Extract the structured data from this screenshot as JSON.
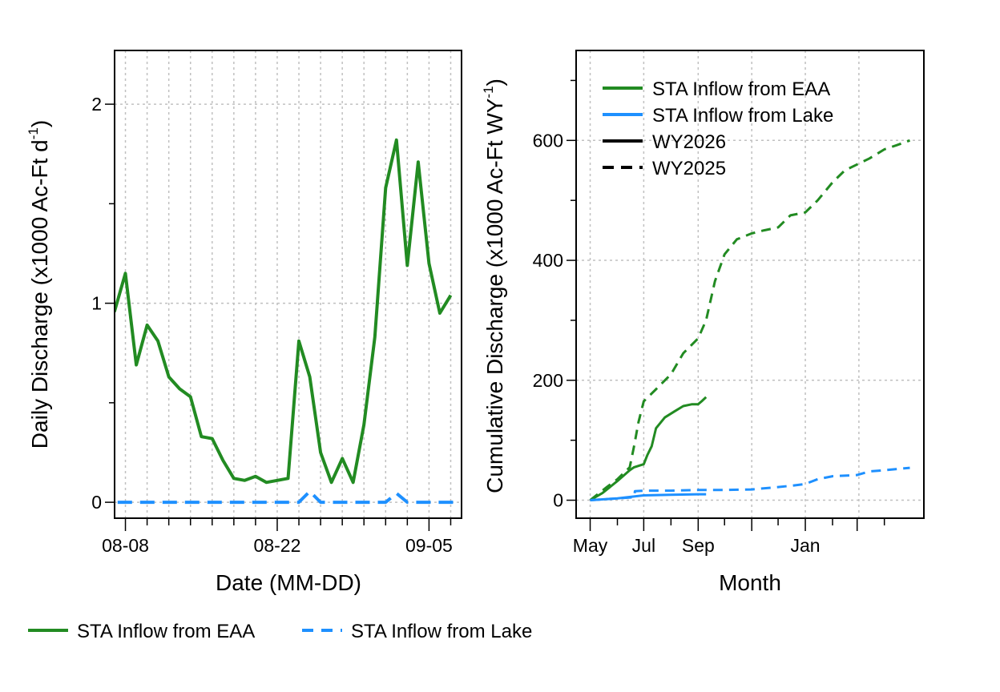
{
  "colors": {
    "eaa": "#228B22",
    "lake": "#1E90FF",
    "grid": "#C0C0C0",
    "axis": "#000000"
  },
  "chart_data": [
    {
      "type": "line",
      "xlabel": "Date (MM-DD)",
      "ylabel_main": "Daily Discharge (x1000 Ac-Ft d",
      "ylabel_sup": "-1",
      "ylabel_end": ")",
      "xlim": [
        "08-07",
        "09-08"
      ],
      "ylim": [
        -0.08,
        2.27
      ],
      "x_ticks": [
        "08-08",
        "08-22",
        "09-05"
      ],
      "y_ticks": [
        0,
        1,
        2
      ],
      "grid": true,
      "x": [
        "07-30",
        "07-31",
        "08-01",
        "08-02",
        "08-03",
        "08-04",
        "08-05",
        "08-06",
        "08-07",
        "08-08",
        "08-09",
        "08-10",
        "08-11",
        "08-12",
        "08-13",
        "08-14",
        "08-15",
        "08-16",
        "08-17",
        "08-18",
        "08-19",
        "08-20",
        "08-21",
        "08-22",
        "08-23",
        "08-24",
        "08-25",
        "08-26",
        "08-27",
        "08-28",
        "08-29",
        "08-30",
        "08-31",
        "09-01",
        "09-02",
        "09-03",
        "09-04",
        "09-05",
        "09-06",
        "09-07",
        "09-08",
        "09-09"
      ],
      "series": [
        {
          "name": "STA Inflow from EAA",
          "style": "solid",
          "values": [
            1.0,
            1.0,
            1.0,
            1.0,
            1.0,
            1.0,
            1.0,
            1.0,
            0.96,
            1.15,
            0.69,
            0.89,
            0.81,
            0.63,
            0.57,
            0.53,
            0.33,
            0.32,
            0.21,
            0.12,
            0.11,
            0.13,
            0.1,
            0.11,
            0.12,
            0.81,
            0.63,
            0.25,
            0.1,
            0.22,
            0.1,
            0.39,
            0.83,
            1.58,
            1.82,
            1.19,
            1.71,
            1.2,
            0.95,
            1.04,
            null,
            null
          ]
        },
        {
          "name": "STA Inflow from Lake",
          "style": "dashed",
          "values": [
            0,
            0,
            0,
            0,
            0,
            0,
            0,
            0,
            0,
            0,
            0,
            0,
            0,
            0,
            0,
            0,
            0,
            0,
            0,
            0,
            0,
            0,
            0,
            0,
            0,
            0,
            0.055,
            0,
            0,
            0,
            0,
            0,
            0,
            0,
            0.045,
            0,
            0,
            0,
            0,
            0,
            0,
            0
          ]
        }
      ]
    },
    {
      "type": "line",
      "xlabel": "Month",
      "ylabel_main": "Cumulative Discharge (x1000 Ac-Ft WY",
      "ylabel_sup": "-1",
      "ylabel_end": ")",
      "x_ticks": [
        "May",
        "Jul",
        "Sep",
        "Jan"
      ],
      "ylim": [
        -30,
        750
      ],
      "y_ticks": [
        0,
        200,
        400,
        600
      ],
      "grid": true,
      "legend_position": "top-left",
      "legend": [
        {
          "label": "STA Inflow from EAA",
          "color": "#228B22",
          "style": "solid"
        },
        {
          "label": "STA Inflow from Lake",
          "color": "#1E90FF",
          "style": "solid"
        },
        {
          "label": "WY2026",
          "color": "#000000",
          "style": "solid"
        },
        {
          "label": "WY2025",
          "color": "#000000",
          "style": "dashed"
        }
      ],
      "series": [
        {
          "name": "EAA WY2026",
          "color": "#228B22",
          "style": "solid",
          "x": [
            "05-01",
            "05-15",
            "06-01",
            "06-15",
            "06-20",
            "07-01",
            "07-05",
            "07-10",
            "07-15",
            "07-25",
            "08-05",
            "08-15",
            "08-25",
            "09-01",
            "09-05",
            "09-10"
          ],
          "values": [
            0,
            12,
            32,
            50,
            55,
            60,
            75,
            90,
            120,
            138,
            148,
            157,
            160,
            160,
            165,
            172
          ]
        },
        {
          "name": "EAA WY2025",
          "color": "#228B22",
          "style": "dashed",
          "x": [
            "05-01",
            "05-20",
            "06-01",
            "06-15",
            "06-20",
            "06-25",
            "07-01",
            "07-15",
            "08-01",
            "08-15",
            "09-01",
            "09-10",
            "09-20",
            "10-01",
            "10-15",
            "11-01",
            "11-15",
            "12-01",
            "12-15",
            "01-01",
            "01-15",
            "02-01",
            "02-15",
            "03-01",
            "03-15",
            "04-01",
            "04-15",
            "04-30"
          ],
          "values": [
            0,
            22,
            35,
            55,
            90,
            130,
            165,
            185,
            210,
            245,
            270,
            300,
            365,
            410,
            435,
            445,
            450,
            455,
            475,
            480,
            500,
            530,
            550,
            560,
            570,
            585,
            592,
            600
          ]
        },
        {
          "name": "Lake WY2026",
          "color": "#1E90FF",
          "style": "solid",
          "x": [
            "05-01",
            "06-01",
            "07-01",
            "08-01",
            "09-01",
            "09-10"
          ],
          "values": [
            0,
            3,
            8,
            9,
            10,
            10
          ]
        },
        {
          "name": "Lake WY2025",
          "color": "#1E90FF",
          "style": "dashed",
          "x": [
            "05-01",
            "06-01",
            "06-20",
            "06-21",
            "07-01",
            "08-01",
            "09-01",
            "10-01",
            "11-01",
            "12-01",
            "12-15",
            "01-01",
            "01-15",
            "02-01",
            "03-01",
            "03-15",
            "04-01",
            "04-30"
          ],
          "values": [
            0,
            3,
            5,
            15,
            16,
            16,
            17,
            17,
            18,
            22,
            24,
            27,
            35,
            40,
            42,
            48,
            50,
            54
          ]
        }
      ]
    }
  ],
  "bottom_legend": [
    {
      "label": "STA Inflow from EAA",
      "color": "#228B22",
      "style": "solid"
    },
    {
      "label": "STA Inflow from Lake",
      "color": "#1E90FF",
      "style": "dashed"
    }
  ]
}
